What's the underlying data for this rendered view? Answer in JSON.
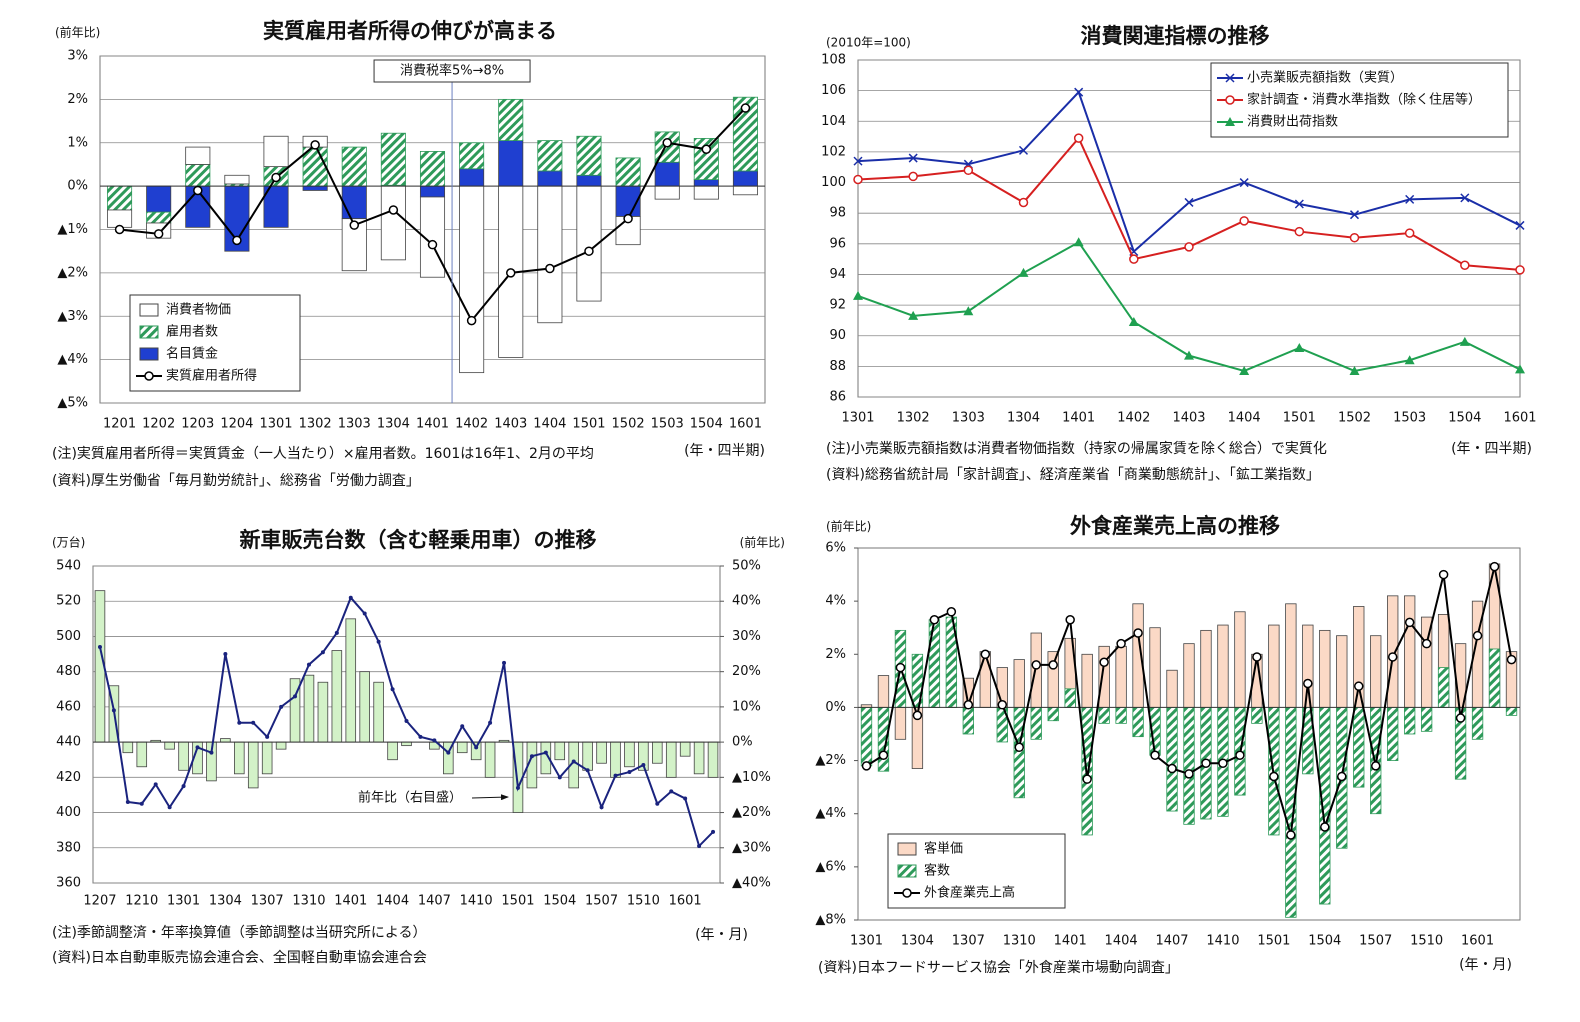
{
  "chart_data": [
    {
      "type": "combo",
      "title": "実質雇用者所得の伸びが高まる",
      "y_label": "(前年比)",
      "x_label": "(年・四半期)",
      "annotation": "消費税率5%→8%",
      "notes": [
        "(注)実質雇用者所得＝実質賃金（一人当たり）×雇用者数。1601は16年1、2月の平均",
        "(資料)厚生労働省「毎月勤労統計」、総務省「労働力調査」"
      ],
      "categories": [
        "1201",
        "1202",
        "1203",
        "1204",
        "1301",
        "1302",
        "1303",
        "1304",
        "1401",
        "1402",
        "1403",
        "1404",
        "1501",
        "1502",
        "1503",
        "1504",
        "1601"
      ],
      "stacked": true,
      "grid": true,
      "legend": "lower left",
      "ylim": [
        -5,
        3
      ],
      "yticks": [
        {
          "value": 3,
          "label": "3%"
        },
        {
          "value": 2,
          "label": "2%"
        },
        {
          "value": 1,
          "label": "1%"
        },
        {
          "value": 0,
          "label": "0%"
        },
        {
          "value": -1,
          "label": "▲1%"
        },
        {
          "value": -2,
          "label": "▲2%"
        },
        {
          "value": -3,
          "label": "▲3%"
        },
        {
          "value": -4,
          "label": "▲4%"
        },
        {
          "value": -5,
          "label": "▲5%"
        }
      ],
      "series": [
        {
          "name": "消費者物価",
          "type": "bar",
          "color": "#ffffff",
          "values": [
            -0.4,
            -0.35,
            0.4,
            0.2,
            0.7,
            0.25,
            -1.2,
            -1.7,
            -1.85,
            -4.3,
            -3.95,
            -3.15,
            -2.65,
            -0.65,
            -0.3,
            -0.3,
            -0.2
          ]
        },
        {
          "name": "雇用者数",
          "type": "bar",
          "color": "#2e9a5a",
          "hatch": true,
          "values": [
            -0.55,
            -0.25,
            0.5,
            0.05,
            0.45,
            0.9,
            0.9,
            1.2,
            0.8,
            0.6,
            0.95,
            0.7,
            0.9,
            0.65,
            0.7,
            0.95,
            1.7
          ]
        },
        {
          "name": "名目賃金",
          "type": "bar",
          "color": "#1f3fd0",
          "values": [
            0.0,
            -0.6,
            -0.95,
            -1.5,
            -0.95,
            -0.1,
            -0.75,
            0.02,
            -0.25,
            0.4,
            1.05,
            0.35,
            0.25,
            -0.7,
            0.55,
            0.15,
            0.35
          ]
        },
        {
          "name": "実質雇用者所得",
          "type": "line",
          "color": "#000000",
          "marker": "circle",
          "values": [
            -1.0,
            -1.1,
            -0.1,
            -1.25,
            0.2,
            0.95,
            -0.9,
            -0.55,
            -1.35,
            -3.1,
            -2.0,
            -1.9,
            -1.5,
            -0.75,
            1.0,
            0.85,
            1.8
          ]
        }
      ]
    },
    {
      "type": "line",
      "title": "消費関連指標の推移",
      "y_label": "(2010年=100)",
      "x_label": "(年・四半期)",
      "notes": [
        "(注)小売業販売額指数は消費者物価指数（持家の帰属家賃を除く総合）で実質化",
        "(資料)総務省統計局「家計調査」、経済産業省「商業動態統計」、「鉱工業指数」"
      ],
      "categories": [
        "1301",
        "1302",
        "1303",
        "1304",
        "1401",
        "1402",
        "1403",
        "1404",
        "1501",
        "1502",
        "1503",
        "1504",
        "1601"
      ],
      "grid": true,
      "legend": "upper right",
      "ylim": [
        86,
        108
      ],
      "yticks": [
        86,
        88,
        90,
        92,
        94,
        96,
        98,
        100,
        102,
        104,
        106,
        108
      ],
      "series": [
        {
          "name": "小売業販売額指数（実質）",
          "type": "line",
          "color": "#1a2ea8",
          "marker": "x",
          "values": [
            101.4,
            101.6,
            101.2,
            102.1,
            105.9,
            95.5,
            98.7,
            100.0,
            98.6,
            97.9,
            98.9,
            99.0,
            97.2
          ]
        },
        {
          "name": "家計調査・消費水準指数（除く住居等）",
          "type": "line",
          "color": "#d62020",
          "marker": "circle",
          "values": [
            100.2,
            100.4,
            100.8,
            98.7,
            102.9,
            95.0,
            95.8,
            97.5,
            96.8,
            96.4,
            96.7,
            94.6,
            94.3
          ]
        },
        {
          "name": "消費財出荷指数",
          "type": "line",
          "color": "#1fa050",
          "marker": "triangle",
          "values": [
            92.6,
            91.3,
            91.6,
            94.1,
            96.1,
            90.9,
            88.7,
            87.7,
            89.2,
            87.7,
            88.4,
            89.6,
            87.8
          ]
        }
      ]
    },
    {
      "type": "combo",
      "title": "新車販売台数（含む軽乗用車）の推移",
      "y_label": "(万台)",
      "y2_label": "(前年比)",
      "x_label": "(年・月)",
      "annotation": "前年比（右目盛）",
      "notes": [
        "(注)季節調整済・年率換算値（季節調整は当研究所による）",
        "(資料)日本自動車販売協会連合会、全国軽自動車協会連合会"
      ],
      "categories": [
        "1207",
        null,
        null,
        "1210",
        null,
        null,
        "1301",
        null,
        null,
        "1304",
        null,
        null,
        "1307",
        null,
        null,
        "1310",
        null,
        null,
        "1401",
        null,
        null,
        "1404",
        null,
        null,
        "1407",
        null,
        null,
        "1410",
        null,
        null,
        "1501",
        null,
        null,
        "1504",
        null,
        null,
        "1507",
        null,
        null,
        "1510",
        null,
        null,
        "1601",
        null,
        null
      ],
      "grid": true,
      "ylim": [
        360,
        540
      ],
      "yticks": [
        360,
        380,
        400,
        420,
        440,
        460,
        480,
        500,
        520,
        540
      ],
      "y2lim": [
        -40,
        50
      ],
      "y2ticks": [
        {
          "value": 50,
          "label": "50%"
        },
        {
          "value": 40,
          "label": "40%"
        },
        {
          "value": 30,
          "label": "30%"
        },
        {
          "value": 20,
          "label": "20%"
        },
        {
          "value": 10,
          "label": "10%"
        },
        {
          "value": 0,
          "label": "0%"
        },
        {
          "value": -10,
          "label": "▲10%"
        },
        {
          "value": -20,
          "label": "▲20%"
        },
        {
          "value": -30,
          "label": "▲30%"
        },
        {
          "value": -40,
          "label": "▲40%"
        }
      ],
      "series": [
        {
          "type": "bar",
          "axis": "y2",
          "color": "#d3f2c8",
          "values": [
            43,
            16,
            -3,
            -7,
            0.5,
            -2,
            -8,
            -9,
            -11,
            1,
            -9,
            -13,
            -9,
            -2,
            18,
            19,
            17,
            26,
            35,
            20,
            17,
            -5,
            -1,
            0,
            -2,
            -9,
            -3,
            -5,
            -10,
            0.5,
            -20,
            -13,
            -9,
            -5,
            -13,
            -8,
            -6,
            -10,
            -7,
            -8,
            -6,
            -10,
            -4,
            -9,
            -10
          ]
        },
        {
          "type": "line",
          "color": "#1a237e",
          "marker": "dot",
          "values": [
            494,
            458,
            406,
            405,
            416,
            403,
            415,
            437,
            434,
            490,
            451,
            451,
            443,
            460,
            466,
            484,
            491,
            502,
            522,
            513,
            497,
            470,
            452,
            443,
            441,
            434,
            449,
            437,
            451,
            485,
            414,
            432,
            434,
            420,
            429,
            424,
            403,
            421,
            423,
            427,
            405,
            412,
            408,
            381,
            389
          ]
        }
      ]
    },
    {
      "type": "combo",
      "title": "外食産業売上高の推移",
      "y_label": "(前年比)",
      "x_label": "(年・月)",
      "notes": [
        "(資料)日本フードサービス協会「外食産業市場動向調査」"
      ],
      "categories": [
        "1301",
        null,
        null,
        "1304",
        null,
        null,
        "1307",
        null,
        null,
        "1310",
        null,
        null,
        "1401",
        null,
        null,
        "1404",
        null,
        null,
        "1407",
        null,
        null,
        "1410",
        null,
        null,
        "1501",
        null,
        null,
        "1504",
        null,
        null,
        "1507",
        null,
        null,
        "1510",
        null,
        null,
        "1601",
        null,
        null
      ],
      "stacked": false,
      "grid": false,
      "legend": "lower left",
      "ylim": [
        -8,
        6
      ],
      "yticks": [
        {
          "value": 6,
          "label": "6%"
        },
        {
          "value": 4,
          "label": "4%"
        },
        {
          "value": 2,
          "label": "2%"
        },
        {
          "value": 0,
          "label": "0%"
        },
        {
          "value": -2,
          "label": "▲2%"
        },
        {
          "value": -4,
          "label": "▲4%"
        },
        {
          "value": -6,
          "label": "▲6%"
        },
        {
          "value": -8,
          "label": "▲8%"
        }
      ],
      "series": [
        {
          "name": "客単価",
          "type": "bar",
          "color": "#fbd9c6",
          "values": [
            0.1,
            1.2,
            -1.2,
            -2.3,
            0.1,
            0.3,
            1.1,
            2.1,
            1.5,
            1.8,
            2.8,
            2.1,
            2.6,
            2.0,
            2.3,
            2.3,
            3.9,
            3.0,
            1.4,
            2.4,
            2.9,
            3.1,
            3.6,
            2.0,
            3.1,
            3.9,
            3.1,
            2.9,
            2.7,
            3.8,
            2.7,
            4.2,
            4.2,
            3.4,
            3.5,
            2.4,
            4.0,
            5.4,
            2.1
          ]
        },
        {
          "name": "客数",
          "type": "bar",
          "color": "#2e9a5a",
          "hatch": true,
          "values": [
            -2.2,
            -2.4,
            2.9,
            2.0,
            3.3,
            3.4,
            -1.0,
            0.0,
            -1.3,
            -3.4,
            -1.2,
            -0.5,
            0.7,
            -4.8,
            -0.6,
            -0.6,
            -1.1,
            -1.8,
            -3.9,
            -4.4,
            -4.2,
            -4.1,
            -3.3,
            -0.6,
            -4.8,
            -7.9,
            -2.5,
            -7.4,
            -5.3,
            -3.0,
            -4.0,
            -2.0,
            -1.0,
            -0.9,
            1.5,
            -2.7,
            -1.2,
            2.2,
            -0.3
          ]
        },
        {
          "name": "外食産業売上高",
          "type": "line",
          "color": "#000000",
          "marker": "circle",
          "values": [
            -2.2,
            -1.8,
            1.5,
            -0.3,
            3.3,
            3.6,
            0.1,
            2.0,
            0.1,
            -1.5,
            1.6,
            1.6,
            3.3,
            -2.7,
            1.7,
            2.4,
            2.8,
            -1.8,
            -2.3,
            -2.5,
            -2.1,
            -2.1,
            -1.8,
            1.9,
            -2.6,
            -4.8,
            0.9,
            -4.5,
            -2.6,
            0.8,
            -2.2,
            1.9,
            3.2,
            2.4,
            5.0,
            -0.4,
            2.7,
            5.3,
            1.8
          ]
        }
      ]
    }
  ]
}
